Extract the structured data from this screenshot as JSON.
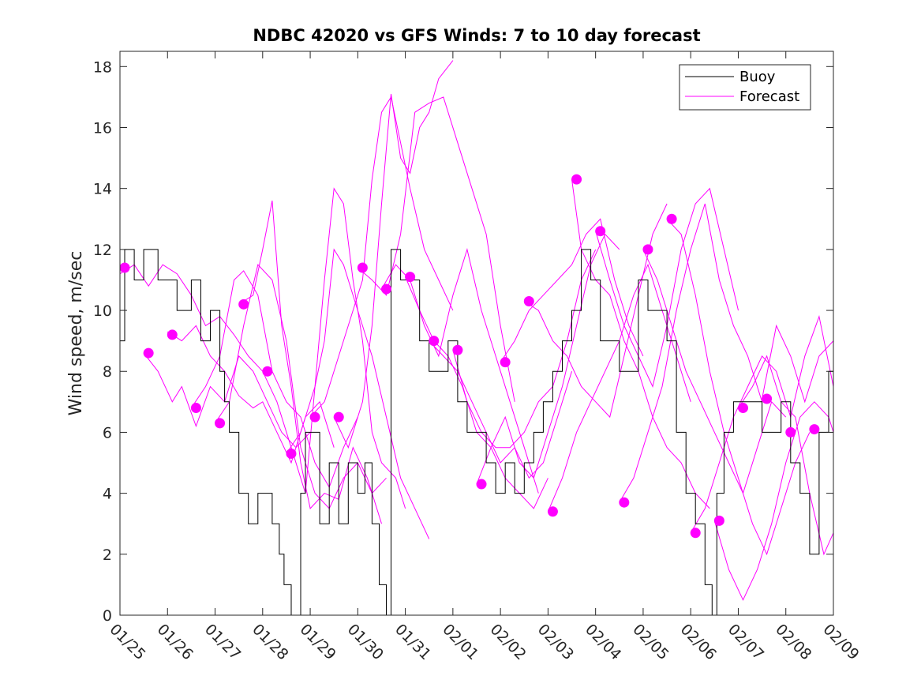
{
  "chart_data": {
    "type": "line",
    "title": "NDBC 42020 vs GFS Winds: 7 to 10 day forecast",
    "xlabel": "",
    "ylabel": "Wind speed, m/sec",
    "xlim": [
      0,
      15
    ],
    "ylim": [
      0,
      18.5
    ],
    "x_tick_values": [
      0,
      1,
      2,
      3,
      4,
      5,
      6,
      7,
      8,
      9,
      10,
      11,
      12,
      13,
      14,
      15
    ],
    "x_tick_labels": [
      "01/25",
      "01/26",
      "01/27",
      "01/28",
      "01/29",
      "01/30",
      "01/31",
      "02/01",
      "02/02",
      "02/03",
      "02/04",
      "02/05",
      "02/06",
      "02/07",
      "02/08",
      "02/09"
    ],
    "y_tick_values": [
      0,
      2,
      4,
      6,
      8,
      10,
      12,
      14,
      16,
      18
    ],
    "y_tick_labels": [
      "0",
      "2",
      "4",
      "6",
      "8",
      "10",
      "12",
      "14",
      "16",
      "18"
    ],
    "x_units": "days since 01/25",
    "legend": {
      "location": "top-right",
      "entries": [
        {
          "label": "Buoy",
          "color": "#000000"
        },
        {
          "label": "Forecast",
          "color": "#ff00ff"
        }
      ]
    },
    "buoy": {
      "name": "Buoy",
      "color": "#000000",
      "x": [
        0,
        0.1,
        0.3,
        0.5,
        0.8,
        1.0,
        1.2,
        1.5,
        1.7,
        1.9,
        2.1,
        2.2,
        2.3,
        2.5,
        2.7,
        2.9,
        3.1,
        3.2,
        3.35,
        3.45,
        3.6,
        3.8,
        3.9,
        4.2,
        4.4,
        4.6,
        4.8,
        5.0,
        5.15,
        5.3,
        5.45,
        5.6,
        5.7,
        5.9,
        6.1,
        6.3,
        6.5,
        6.7,
        6.9,
        7.1,
        7.3,
        7.5,
        7.7,
        7.9,
        8.1,
        8.3,
        8.5,
        8.7,
        8.9,
        9.1,
        9.3,
        9.5,
        9.7,
        9.9,
        10.1,
        10.3,
        10.5,
        10.7,
        10.9,
        11.1,
        11.3,
        11.5,
        11.7,
        11.9,
        12.1,
        12.3,
        12.45,
        12.55,
        12.7,
        12.9,
        13.1,
        13.3,
        13.5,
        13.7,
        13.9,
        14.1,
        14.3,
        14.5,
        14.7,
        14.9,
        15.0
      ],
      "y": [
        9,
        12,
        11,
        12,
        11,
        11,
        10,
        11,
        9,
        10,
        8,
        7,
        6,
        4,
        3,
        4,
        4,
        3,
        2,
        1,
        0,
        4,
        6,
        3,
        5,
        3,
        5,
        4,
        5,
        3,
        1,
        0,
        12,
        11,
        11,
        9,
        8,
        8,
        9,
        7,
        6,
        6,
        5,
        4,
        5,
        4,
        5,
        6,
        7,
        8,
        9,
        10,
        12,
        11,
        9,
        9,
        8,
        8,
        11,
        10,
        10,
        9,
        6,
        4,
        3,
        1,
        0,
        4,
        6,
        7,
        7,
        7,
        6,
        6,
        7,
        5,
        4,
        2,
        6,
        8,
        7
      ]
    },
    "forecast_series": [
      {
        "name": "Forecast",
        "x": [
          0,
          0.3,
          0.6,
          0.9,
          1.2,
          1.5,
          1.8,
          2.1,
          2.4,
          2.7,
          3.0
        ],
        "y": [
          11.2,
          11.5,
          10.8,
          11.5,
          11.2,
          10.5,
          9.5,
          9.8,
          9.2,
          8.5,
          8.0
        ]
      },
      {
        "name": "Forecast",
        "x": [
          0.5,
          0.8,
          1.1,
          1.3,
          1.6,
          1.9,
          2.2,
          2.5,
          2.8,
          3.1,
          3.4,
          3.7,
          4.0
        ],
        "y": [
          8.6,
          8.0,
          7.0,
          7.5,
          6.2,
          7.5,
          7.0,
          8.5,
          8.0,
          7.0,
          6.0,
          5.5,
          6.0
        ]
      },
      {
        "name": "Forecast",
        "x": [
          1.0,
          1.3,
          1.6,
          1.9,
          2.2,
          2.5,
          2.8,
          3.0,
          3.3,
          3.6,
          3.9,
          4.2,
          4.5
        ],
        "y": [
          9.3,
          9.0,
          9.5,
          8.5,
          8.0,
          7.2,
          6.8,
          7.0,
          6.0,
          5.0,
          6.5,
          7.0,
          5.5
        ]
      },
      {
        "name": "Forecast",
        "x": [
          1.5,
          1.8,
          2.1,
          2.4,
          2.6,
          2.9,
          3.2,
          3.5,
          3.8,
          4.1,
          4.4,
          4.7,
          5.0
        ],
        "y": [
          6.8,
          7.5,
          8.5,
          11.0,
          11.3,
          10.5,
          8.0,
          7.0,
          6.5,
          5.0,
          4.2,
          5.5,
          6.5
        ]
      },
      {
        "name": "Forecast",
        "x": [
          2.0,
          2.3,
          2.6,
          2.9,
          3.2,
          3.5,
          3.8,
          4.1,
          4.4,
          4.7,
          5.0,
          5.3,
          5.6
        ],
        "y": [
          6.3,
          7.0,
          9.5,
          11.5,
          11.0,
          9.0,
          5.5,
          4.0,
          3.5,
          4.5,
          5.0,
          4.0,
          4.5
        ]
      },
      {
        "name": "Forecast",
        "x": [
          2.5,
          2.8,
          3.0,
          3.2,
          3.4,
          3.6,
          3.8,
          4.0,
          4.3,
          4.6,
          4.9,
          5.2,
          5.5
        ],
        "y": [
          10.2,
          10.5,
          12.0,
          13.6,
          9.5,
          7.5,
          5.0,
          3.5,
          4.0,
          3.8,
          5.5,
          4.5,
          3.0
        ]
      },
      {
        "name": "Forecast",
        "x": [
          3.0,
          3.3,
          3.6,
          3.9,
          4.1,
          4.3,
          4.5,
          4.7,
          4.9,
          5.1,
          5.3,
          5.5,
          5.8,
          6.0
        ],
        "y": [
          8.0,
          7.0,
          5.5,
          4.0,
          7.5,
          11.0,
          14.0,
          13.5,
          11.0,
          9.0,
          6.0,
          5.0,
          4.5,
          3.5
        ]
      },
      {
        "name": "Forecast",
        "x": [
          3.5,
          3.8,
          4.1,
          4.3,
          4.5,
          4.7,
          5.0,
          5.3,
          5.6,
          5.9,
          6.2,
          6.5
        ],
        "y": [
          5.3,
          6.0,
          7.5,
          9.0,
          12.0,
          11.5,
          10.0,
          8.5,
          6.5,
          4.5,
          3.5,
          2.5
        ]
      },
      {
        "name": "Forecast",
        "x": [
          4.0,
          4.3,
          4.6,
          4.9,
          5.1,
          5.3,
          5.5,
          5.7,
          5.9,
          6.1,
          6.4,
          6.7,
          7.0
        ],
        "y": [
          6.5,
          7.0,
          8.5,
          10.0,
          11.0,
          14.3,
          16.5,
          17.0,
          15.5,
          14.0,
          12.0,
          11.0,
          10.0
        ]
      },
      {
        "name": "Forecast",
        "x": [
          4.5,
          4.8,
          5.1,
          5.3,
          5.5,
          5.7,
          5.9,
          6.1,
          6.3,
          6.5,
          6.7,
          7.0
        ],
        "y": [
          6.5,
          5.5,
          7.0,
          9.5,
          13.5,
          17.1,
          15.0,
          14.5,
          16.0,
          16.5,
          17.6,
          18.2
        ]
      },
      {
        "name": "Forecast",
        "x": [
          5.0,
          5.3,
          5.6,
          5.9,
          6.2,
          6.5,
          6.8,
          7.1,
          7.4,
          7.7,
          8.0,
          8.3
        ],
        "y": [
          11.4,
          11.0,
          10.5,
          12.5,
          16.5,
          16.8,
          17.0,
          15.5,
          14.0,
          12.5,
          9.5,
          7.0
        ]
      },
      {
        "name": "Forecast",
        "x": [
          5.5,
          5.8,
          6.1,
          6.4,
          6.7,
          7.0,
          7.3,
          7.6,
          7.9,
          8.2,
          8.5,
          8.8
        ],
        "y": [
          10.7,
          11.5,
          11.0,
          9.5,
          8.5,
          10.5,
          12.0,
          10.0,
          8.5,
          7.0,
          5.5,
          4.0
        ]
      },
      {
        "name": "Forecast",
        "x": [
          6.0,
          6.3,
          6.6,
          6.9,
          7.2,
          7.5,
          7.8,
          8.1,
          8.4,
          8.7,
          9.0
        ],
        "y": [
          11.1,
          10.0,
          9.0,
          8.5,
          7.5,
          6.0,
          5.5,
          4.5,
          4.0,
          3.5,
          4.5
        ]
      },
      {
        "name": "Forecast",
        "x": [
          6.5,
          6.8,
          7.1,
          7.4,
          7.7,
          8.0,
          8.3,
          8.6,
          8.9,
          9.2,
          9.5
        ],
        "y": [
          9.0,
          8.5,
          8.0,
          7.0,
          6.0,
          5.0,
          5.5,
          4.5,
          5.0,
          6.5,
          8.0
        ]
      },
      {
        "name": "Forecast",
        "x": [
          7.0,
          7.3,
          7.6,
          7.9,
          8.2,
          8.5,
          8.8,
          9.1,
          9.4,
          9.7,
          10.0
        ],
        "y": [
          8.7,
          7.0,
          6.0,
          5.5,
          5.5,
          6.0,
          7.0,
          7.5,
          9.0,
          11.0,
          12.0
        ]
      },
      {
        "name": "Forecast",
        "x": [
          7.5,
          7.8,
          8.1,
          8.4,
          8.7,
          9.0,
          9.3,
          9.6,
          9.9,
          10.2,
          10.5
        ],
        "y": [
          4.3,
          5.5,
          6.5,
          5.0,
          4.5,
          6.0,
          7.5,
          9.5,
          11.5,
          12.5,
          12.0
        ]
      },
      {
        "name": "Forecast",
        "x": [
          8.0,
          8.3,
          8.6,
          8.9,
          9.2,
          9.5,
          9.8,
          10.1,
          10.4,
          10.7,
          11.0
        ],
        "y": [
          8.3,
          9.0,
          10.0,
          10.5,
          11.0,
          11.5,
          12.5,
          13.0,
          11.0,
          9.5,
          8.5
        ]
      },
      {
        "name": "Forecast",
        "x": [
          8.5,
          8.8,
          9.1,
          9.4,
          9.7,
          10.0,
          10.3,
          10.6,
          10.9,
          11.2,
          11.5
        ],
        "y": [
          10.3,
          10.0,
          9.0,
          8.5,
          7.5,
          7.0,
          6.5,
          8.5,
          10.5,
          12.5,
          13.5
        ]
      },
      {
        "name": "Forecast",
        "x": [
          9.0,
          9.3,
          9.6,
          9.9,
          10.2,
          10.5,
          10.8,
          11.1,
          11.4,
          11.7,
          12.0
        ],
        "y": [
          3.4,
          4.5,
          6.0,
          7.0,
          8.0,
          9.0,
          10.5,
          11.5,
          10.0,
          8.5,
          7.0
        ]
      },
      {
        "name": "Forecast",
        "x": [
          9.5,
          9.7,
          10.0,
          10.3,
          10.6,
          10.9,
          11.2,
          11.5,
          11.8,
          12.1,
          12.4
        ],
        "y": [
          14.3,
          12.0,
          11.0,
          10.5,
          9.0,
          8.0,
          6.5,
          5.5,
          5.0,
          4.0,
          3.5
        ]
      },
      {
        "name": "Forecast",
        "x": [
          10.0,
          10.3,
          10.6,
          10.9,
          11.2,
          11.5,
          11.8,
          12.1,
          12.4,
          12.7,
          13.0
        ],
        "y": [
          12.6,
          11.0,
          9.5,
          8.5,
          7.5,
          9.5,
          12.0,
          13.5,
          14.0,
          12.0,
          10.0
        ]
      },
      {
        "name": "Forecast",
        "x": [
          10.5,
          10.8,
          11.1,
          11.4,
          11.7,
          12.0,
          12.3,
          12.6,
          12.9,
          13.2,
          13.5
        ],
        "y": [
          3.7,
          4.5,
          6.0,
          7.5,
          10.0,
          12.0,
          13.5,
          11.0,
          9.5,
          8.5,
          7.0
        ]
      },
      {
        "name": "Forecast",
        "x": [
          11.0,
          11.3,
          11.6,
          11.9,
          12.2,
          12.5,
          12.8,
          13.1,
          13.4,
          13.7,
          14.0
        ],
        "y": [
          12.0,
          11.0,
          9.5,
          8.0,
          7.0,
          6.0,
          5.0,
          4.0,
          5.5,
          7.0,
          6.5
        ]
      },
      {
        "name": "Forecast",
        "x": [
          11.5,
          11.8,
          12.1,
          12.4,
          12.7,
          13.0,
          13.3,
          13.6,
          13.9,
          14.2,
          14.5
        ],
        "y": [
          13.0,
          12.5,
          10.5,
          8.0,
          6.0,
          4.5,
          3.0,
          2.0,
          3.5,
          5.0,
          6.0
        ]
      },
      {
        "name": "Forecast",
        "x": [
          12.0,
          12.3,
          12.6,
          12.9,
          13.2,
          13.5,
          13.8,
          14.1,
          14.4,
          14.7,
          15.0
        ],
        "y": [
          2.7,
          3.5,
          5.0,
          6.5,
          7.5,
          8.5,
          8.0,
          6.5,
          8.5,
          9.8,
          7.5
        ]
      },
      {
        "name": "Forecast",
        "x": [
          12.5,
          12.8,
          13.1,
          13.4,
          13.7,
          14.0,
          14.3,
          14.6,
          14.9,
          15.0
        ],
        "y": [
          3.1,
          1.5,
          0.5,
          1.5,
          3.0,
          5.0,
          6.5,
          7.0,
          6.5,
          6.0
        ]
      },
      {
        "name": "Forecast",
        "x": [
          13.0,
          13.3,
          13.6,
          13.9,
          14.2,
          14.5,
          14.8,
          15.0
        ],
        "y": [
          6.8,
          7.5,
          8.5,
          7.0,
          6.5,
          4.0,
          2.0,
          2.7
        ]
      },
      {
        "name": "Forecast",
        "x": [
          13.5,
          13.8,
          14.1,
          14.4,
          14.7,
          15.0
        ],
        "y": [
          7.1,
          9.5,
          8.5,
          7.0,
          8.5,
          9.0
        ]
      }
    ],
    "forecast_points": {
      "name": "Forecast initial values",
      "color": "#ff00ff",
      "x": [
        0.1,
        0.6,
        1.1,
        1.6,
        2.1,
        2.6,
        3.1,
        3.6,
        4.1,
        4.6,
        5.1,
        5.6,
        6.1,
        6.6,
        7.1,
        7.6,
        8.1,
        8.6,
        9.1,
        9.6,
        10.1,
        10.6,
        11.1,
        11.6,
        12.1,
        12.6,
        13.1,
        13.6,
        14.1,
        14.6
      ],
      "y": [
        11.4,
        8.6,
        9.2,
        6.8,
        6.3,
        10.2,
        8.0,
        5.3,
        6.5,
        6.5,
        11.4,
        10.7,
        11.1,
        9.0,
        8.7,
        4.3,
        8.3,
        10.3,
        3.4,
        14.3,
        12.6,
        3.7,
        12.0,
        13.0,
        2.7,
        3.1,
        6.8,
        7.1,
        6.0,
        6.1
      ]
    }
  }
}
